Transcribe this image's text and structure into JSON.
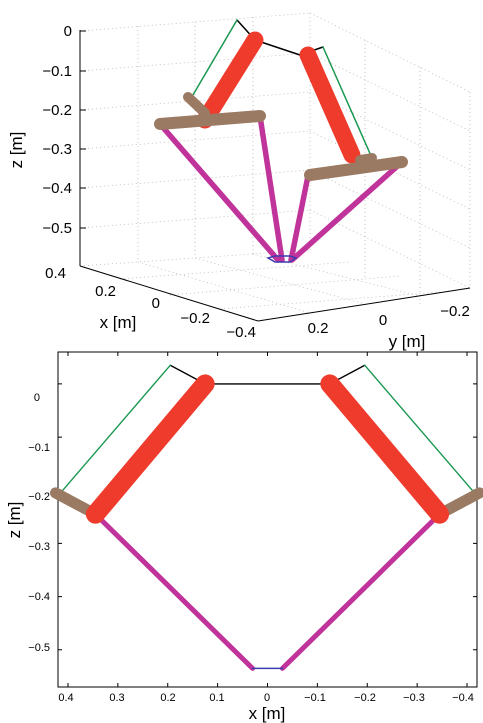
{
  "chart_data": [
    {
      "type": "line",
      "view": "3d-perspective",
      "xlabel": "x [m]",
      "ylabel": "y [m]",
      "zlabel": "z [m]",
      "grid": true,
      "x_ticks": [
        "0.4",
        "0.2",
        "0",
        "−0.2",
        "−0.4"
      ],
      "y_ticks": [
        "0.2",
        "0",
        "−0.2"
      ],
      "z_ticks": [
        "0",
        "−0.1",
        "−0.2",
        "−0.3",
        "−0.4",
        "−0.5"
      ],
      "xlim": [
        -0.45,
        0.45
      ],
      "ylim": [
        -0.3,
        0.35
      ],
      "zlim": [
        -0.57,
        0.02
      ]
    },
    {
      "type": "line",
      "view": "x-z projection",
      "xlabel": "x [m]",
      "ylabel": "z [m]",
      "xlim": [
        0.42,
        -0.42
      ],
      "ylim": [
        -0.57,
        0.06
      ],
      "x_ticks": [
        "0.4",
        "0.3",
        "0.2",
        "0.1",
        "0",
        "−0.1",
        "−0.2",
        "−0.3",
        "−0.4"
      ],
      "y_ticks": [
        "0",
        "−0.1",
        "−0.2",
        "−0.3",
        "−0.4",
        "−0.5"
      ],
      "colors": {
        "base": "#000000",
        "green_link": "#1a9850",
        "upper_arm": "#ee3b2c",
        "elbow_bar": "#9a7a62",
        "lower_arm": "#c0339a",
        "platform": "#3b3bb0"
      },
      "series": [
        {
          "x": [
            0.195,
            0.125,
            -0.125,
            -0.195
          ],
          "y": [
            0.035,
            0.0,
            0.0,
            0.035
          ]
        },
        {
          "x": [
            0.195,
            0.415
          ],
          "y": [
            0.035,
            -0.205
          ]
        },
        {
          "x": [
            -0.195,
            -0.415
          ],
          "y": [
            0.035,
            -0.205
          ]
        },
        {
          "x": [
            0.125,
            0.345
          ],
          "y": [
            0.0,
            -0.245
          ]
        },
        {
          "x": [
            -0.125,
            -0.345
          ],
          "y": [
            0.0,
            -0.245
          ]
        },
        {
          "x": [
            0.425,
            0.345
          ],
          "y": [
            -0.205,
            -0.245
          ]
        },
        {
          "x": [
            -0.425,
            -0.345
          ],
          "y": [
            -0.205,
            -0.245
          ]
        },
        {
          "x": [
            0.345,
            0.03
          ],
          "y": [
            -0.245,
            -0.535
          ]
        },
        {
          "x": [
            -0.345,
            -0.03
          ],
          "y": [
            -0.245,
            -0.535
          ]
        },
        {
          "x": [
            0.03,
            -0.03
          ],
          "y": [
            -0.535,
            -0.535
          ]
        }
      ]
    }
  ]
}
